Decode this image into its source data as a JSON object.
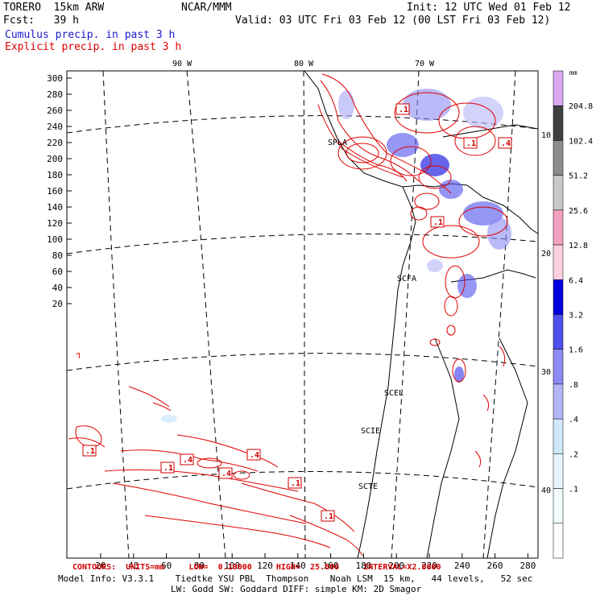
{
  "header": {
    "model": "TORERO  15km ARW",
    "center": "NCAR/MMM",
    "init": "Init: 12 UTC Wed 01 Feb 12",
    "fcst": "Fcst:   39 h",
    "valid": "Valid: 03 UTC Fri 03 Feb 12 (00 LST Fri 03 Feb 12)",
    "field1": "Cumulus precip. in past 3 h",
    "field2": "Explicit precip. in past 3 h",
    "field1_color": "#1a1acc",
    "field2_color": "#e00000"
  },
  "map": {
    "lon_labels": [
      "90 W",
      "80 W",
      "70 W"
    ],
    "lat_labels": [
      "10 S",
      "20 S",
      "30 S",
      "40 S"
    ],
    "station_labels": [
      "SPLA",
      "SCFA",
      "SCEL",
      "SCIE",
      "SCTE"
    ],
    "contour_labels": [
      ".1",
      ".1",
      ".4",
      ".1",
      ".1",
      ".4",
      ".1",
      ".4",
      ".4",
      ".1",
      ".1",
      ".1",
      ".1"
    ],
    "y_ticks": [
      "300",
      "280",
      "260",
      "240",
      "220",
      "200",
      "180",
      "160",
      "140",
      "120",
      "100",
      "80",
      "60",
      "40",
      "20"
    ],
    "x_ticks": [
      "20",
      "40",
      "60",
      "80",
      "100",
      "120",
      "140",
      "160",
      "180",
      "200",
      "220",
      "240",
      "260",
      "280"
    ]
  },
  "colorbar": {
    "unit": "mm",
    "labels": [
      "204.8",
      "102.4",
      "51.2",
      "25.6",
      "12.8",
      "6.4",
      "3.2",
      "1.6",
      ".8",
      ".4",
      ".2",
      ".1"
    ],
    "colors": [
      "#d8a8f0",
      "#404040",
      "#8c8c8c",
      "#c8c8c8",
      "#f4a0c0",
      "#fcd0e0",
      "#0000e0",
      "#5050ee",
      "#8c8cf4",
      "#b4b4f8",
      "#d0e8fc",
      "#e6f6fc",
      "#f2fbfd",
      "#ffffff"
    ]
  },
  "footer": {
    "contours": "CONTOURS:  UNITS=mm     LOW=  0.10000     HIGH=  25.600     INTERVAL=X2.0000",
    "model_info": "Model Info: V3.3.1    Tiedtke YSU PBL  Thompson    Noah LSM  15 km,   44 levels,   52 sec",
    "physics": "LW: Godd SW: Goddard DIFF: simple KM: 2D Smagor"
  }
}
